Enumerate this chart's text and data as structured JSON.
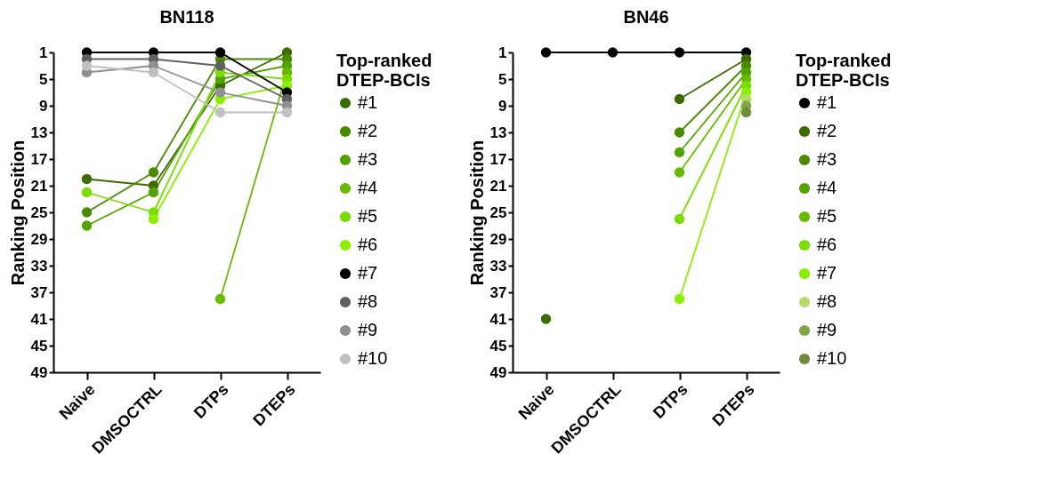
{
  "chart_data": [
    {
      "type": "line",
      "title": "BN118",
      "ylabel": "Ranking Position",
      "legend_title": "Top-ranked\nDTEP-BCIs",
      "categories": [
        "Naive",
        "DMSOCTRL",
        "DTPs",
        "DTEPs"
      ],
      "ylim": [
        49,
        1
      ],
      "yticks": [
        1,
        5,
        9,
        13,
        17,
        21,
        25,
        29,
        33,
        37,
        41,
        45,
        49
      ],
      "grid": false,
      "legend": "right",
      "marker": "circle",
      "line_style": "solid",
      "series": [
        {
          "name": "#1",
          "color": "#3d6b00",
          "values": [
            20,
            21,
            6,
            1
          ]
        },
        {
          "name": "#2",
          "color": "#4a8a00",
          "values": [
            25,
            19,
            2,
            2
          ]
        },
        {
          "name": "#3",
          "color": "#52a300",
          "values": [
            27,
            22,
            5,
            3
          ]
        },
        {
          "name": "#4",
          "color": "#66bb00",
          "values": [
            null,
            null,
            38,
            4
          ]
        },
        {
          "name": "#5",
          "color": "#79dd00",
          "values": [
            22,
            25,
            4,
            5
          ]
        },
        {
          "name": "#6",
          "color": "#88f000",
          "values": [
            null,
            26,
            8,
            6
          ]
        },
        {
          "name": "#7",
          "color": "#000000",
          "values": [
            1,
            1,
            1,
            7
          ]
        },
        {
          "name": "#8",
          "color": "#606060",
          "values": [
            2,
            2,
            3,
            8
          ]
        },
        {
          "name": "#9",
          "color": "#8f8f8f",
          "values": [
            4,
            3,
            7,
            9
          ]
        },
        {
          "name": "#10",
          "color": "#c0c0c0",
          "values": [
            3,
            4,
            10,
            10
          ]
        }
      ]
    },
    {
      "type": "line",
      "title": "BN46",
      "ylabel": "Ranking Position",
      "legend_title": "Top-ranked\nDTEP-BCIs",
      "categories": [
        "Naive",
        "DMSOCTRL",
        "DTPs",
        "DTEPs"
      ],
      "ylim": [
        49,
        1
      ],
      "yticks": [
        1,
        5,
        9,
        13,
        17,
        21,
        25,
        29,
        33,
        37,
        41,
        45,
        49
      ],
      "grid": false,
      "legend": "right",
      "marker": "circle",
      "line_style": "solid",
      "series": [
        {
          "name": "#1",
          "color": "#000000",
          "values": [
            1,
            1,
            1,
            1
          ]
        },
        {
          "name": "#2",
          "color": "#3d6b00",
          "values": [
            41,
            null,
            8,
            2
          ]
        },
        {
          "name": "#3",
          "color": "#4a8a00",
          "values": [
            null,
            null,
            13,
            3
          ]
        },
        {
          "name": "#4",
          "color": "#52a300",
          "values": [
            null,
            null,
            16,
            4
          ]
        },
        {
          "name": "#5",
          "color": "#66bb00",
          "values": [
            null,
            null,
            19,
            5
          ]
        },
        {
          "name": "#6",
          "color": "#79dd00",
          "values": [
            null,
            null,
            26,
            6
          ]
        },
        {
          "name": "#7",
          "color": "#88f000",
          "values": [
            null,
            null,
            38,
            7
          ]
        },
        {
          "name": "#8",
          "color": "#b5db6b",
          "values": [
            null,
            null,
            null,
            8
          ]
        },
        {
          "name": "#9",
          "color": "#7fa844",
          "values": [
            null,
            null,
            null,
            9
          ]
        },
        {
          "name": "#10",
          "color": "#6f8c3d",
          "values": [
            null,
            null,
            null,
            10
          ]
        }
      ]
    }
  ]
}
